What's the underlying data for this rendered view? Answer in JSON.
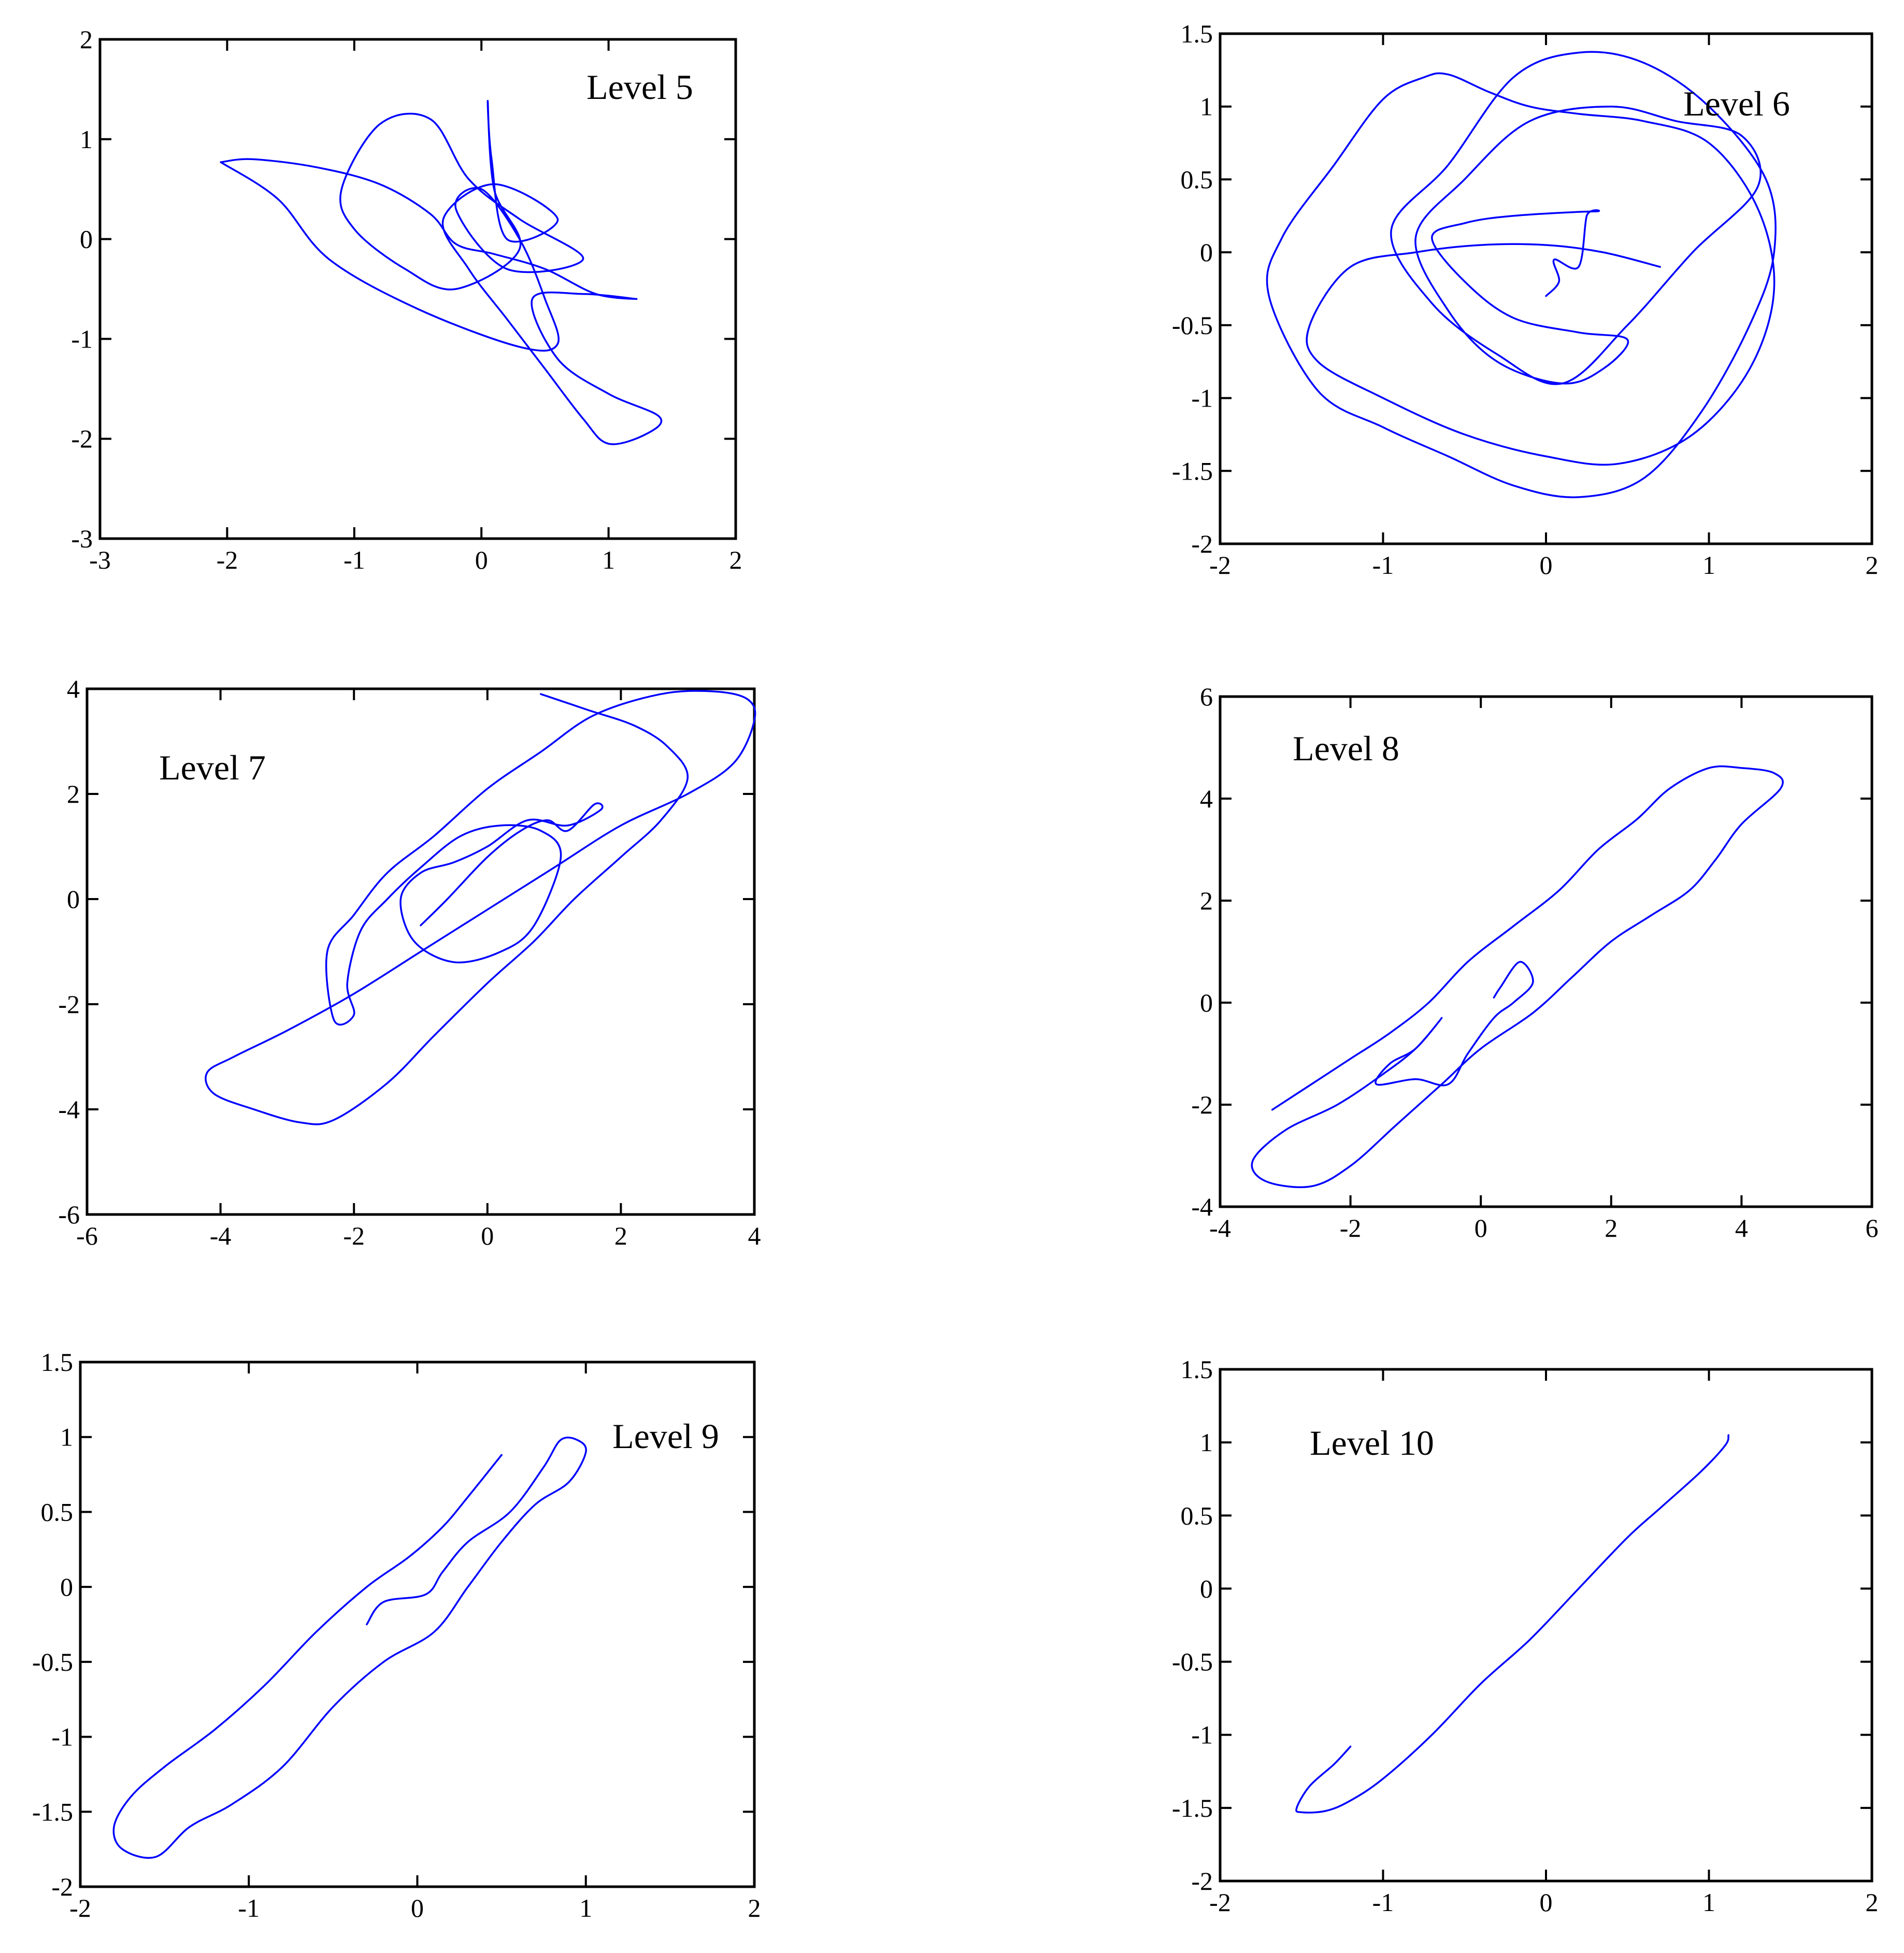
{
  "style": {
    "line_color": "#0000ff",
    "axis_color": "#000000",
    "background": "#ffffff"
  },
  "chart_data": [
    {
      "type": "line",
      "annotation": "Level 5",
      "xlim": [
        -3,
        2
      ],
      "ylim": [
        -3,
        2
      ],
      "xticks": [
        "-3",
        "-2",
        "-1",
        "0",
        "1",
        "2"
      ],
      "yticks": [
        "2",
        "1",
        "0",
        "-1",
        "-2",
        "-3"
      ],
      "grid": false,
      "series": [
        {
          "x": [
            -2.05,
            -1.8,
            -1.3,
            -0.8,
            -0.4,
            -0.2,
            0.1,
            0.5,
            0.9,
            1.22,
            0.8,
            0.4,
            0.6,
            1.0,
            1.4,
            1.3,
            1.0,
            0.8,
            0.5,
            0.2,
            -0.1,
            -0.3,
            0.1,
            0.6,
            0.2,
            0.08,
            0.05,
            0.1,
            0.3,
            -0.2,
            -0.6,
            -1.0,
            -1.1,
            -0.8,
            -0.4,
            -0.1,
            0.3,
            0.8,
            0.2,
            -0.2,
            0.0,
            0.3,
            0.5,
            0.6,
            0.3,
            -0.5,
            -1.2,
            -1.6,
            -2.05
          ],
          "y": [
            0.77,
            0.8,
            0.72,
            0.55,
            0.25,
            -0.05,
            -0.15,
            -0.3,
            -0.55,
            -0.6,
            -0.55,
            -0.6,
            -1.2,
            -1.55,
            -1.78,
            -1.95,
            -2.05,
            -1.8,
            -1.3,
            -0.8,
            -0.3,
            0.2,
            0.55,
            0.2,
            0.0,
            0.8,
            1.38,
            0.5,
            -0.1,
            -0.5,
            -0.3,
            0.1,
            0.5,
            1.15,
            1.2,
            0.6,
            0.2,
            -0.2,
            -0.3,
            0.3,
            0.5,
            0.0,
            -0.6,
            -1.05,
            -1.08,
            -0.7,
            -0.2,
            0.4,
            0.77
          ]
        }
      ]
    },
    {
      "type": "line",
      "annotation": "Level 6",
      "xlim": [
        -2,
        2
      ],
      "ylim": [
        -2,
        1.5
      ],
      "xticks": [
        "-2",
        "-1",
        "0",
        "1",
        "2"
      ],
      "yticks": [
        "1.5",
        "1",
        "0.5",
        "0",
        "-0.5",
        "-1",
        "-1.5",
        "-2"
      ],
      "grid": false,
      "series": [
        {
          "x": [
            0.0,
            0.08,
            0.05,
            0.2,
            0.25,
            0.3,
            -0.2,
            -0.5,
            -0.7,
            -0.5,
            -0.2,
            0.2,
            0.5,
            0.35,
            0.1,
            -0.3,
            -0.6,
            -0.8,
            -0.5,
            -0.1,
            0.4,
            0.8,
            1.2,
            1.3,
            0.9,
            0.5,
            0.1,
            -0.3,
            -0.7,
            -0.95,
            -0.6,
            -0.2,
            0.2,
            0.6,
            1.0,
            1.35,
            1.4,
            1.25,
            0.95,
            0.6,
            0.2,
            -0.2,
            -0.6,
            -1.0,
            -1.4,
            -1.7,
            -1.62,
            -1.3,
            -1.0,
            -0.75,
            -0.6,
            -0.35,
            -0.1,
            0.2,
            0.6,
            1.0,
            1.3,
            1.4,
            1.25,
            0.9,
            0.45,
            0.0,
            -0.5,
            -1.0,
            -1.4,
            -1.45,
            -1.2,
            -0.8,
            -0.4,
            0.0,
            0.35,
            0.7
          ],
          "y": [
            -0.3,
            -0.2,
            -0.05,
            -0.1,
            0.25,
            0.28,
            0.25,
            0.2,
            0.1,
            -0.2,
            -0.45,
            -0.55,
            -0.6,
            -0.8,
            -0.9,
            -0.75,
            -0.4,
            0.1,
            0.5,
            0.9,
            1.0,
            0.9,
            0.8,
            0.45,
            0.0,
            -0.5,
            -0.9,
            -0.7,
            -0.35,
            0.15,
            0.6,
            1.2,
            1.37,
            1.3,
            1.0,
            0.5,
            0.0,
            -0.5,
            -1.1,
            -1.55,
            -1.68,
            -1.6,
            -1.4,
            -1.2,
            -0.95,
            -0.3,
            0.1,
            0.6,
            1.05,
            1.2,
            1.22,
            1.1,
            1.0,
            0.95,
            0.9,
            0.75,
            0.3,
            -0.25,
            -0.8,
            -1.25,
            -1.45,
            -1.4,
            -1.25,
            -1.0,
            -0.75,
            -0.5,
            -0.1,
            0.0,
            0.05,
            0.05,
            0.0,
            -0.1
          ]
        }
      ]
    },
    {
      "type": "line",
      "annotation": "Level 7",
      "xlim": [
        -6,
        4
      ],
      "ylim": [
        -6,
        4
      ],
      "xticks": [
        "-6",
        "-4",
        "-2",
        "0",
        "2",
        "4"
      ],
      "yticks": [
        "4",
        "2",
        "0",
        "-2",
        "-4",
        "-6"
      ],
      "grid": false,
      "series": [
        {
          "x": [
            -1.0,
            -0.6,
            0.0,
            0.5,
            0.9,
            1.2,
            1.6,
            1.7,
            1.2,
            0.6,
            0.0,
            -0.5,
            -1.0,
            -1.3,
            -1.1,
            -0.5,
            0.2,
            0.7,
            1.1,
            0.8,
            0.2,
            -0.4,
            -1.0,
            -1.5,
            -1.9,
            -2.1,
            -2.0,
            -2.3,
            -2.4,
            -2.0,
            -1.5,
            -0.8,
            0.0,
            0.8,
            1.6,
            2.6,
            3.4,
            3.9,
            4.0,
            3.7,
            3.0,
            2.0,
            1.0,
            0.0,
            -1.0,
            -2.0,
            -3.0,
            -3.8,
            -4.2,
            -4.1,
            -3.5,
            -2.8,
            -2.3,
            -1.5,
            -0.8,
            0.0,
            0.7,
            1.3,
            2.0,
            2.6,
            3.0,
            2.7,
            2.2,
            1.5,
            0.8
          ],
          "y": [
            -0.5,
            0.0,
            0.8,
            1.3,
            1.5,
            1.3,
            1.8,
            1.7,
            1.4,
            1.5,
            1.0,
            0.7,
            0.5,
            0.0,
            -0.8,
            -1.2,
            -1.0,
            -0.5,
            0.8,
            1.3,
            1.4,
            1.2,
            0.6,
            0.0,
            -0.6,
            -1.6,
            -2.2,
            -2.3,
            -1.0,
            -0.3,
            0.5,
            1.2,
            2.1,
            2.8,
            3.5,
            3.9,
            3.95,
            3.8,
            3.4,
            2.6,
            2.0,
            1.4,
            0.6,
            -0.2,
            -1.0,
            -1.8,
            -2.5,
            -3.0,
            -3.3,
            -3.7,
            -4.0,
            -4.25,
            -4.2,
            -3.5,
            -2.6,
            -1.6,
            -0.8,
            0.0,
            0.8,
            1.5,
            2.3,
            2.9,
            3.3,
            3.6,
            3.9
          ]
        }
      ]
    },
    {
      "type": "line",
      "annotation": "Level 8",
      "xlim": [
        -4,
        6
      ],
      "ylim": [
        -4,
        6
      ],
      "xticks": [
        "-4",
        "-2",
        "0",
        "2",
        "4",
        "6"
      ],
      "yticks": [
        "6",
        "4",
        "2",
        "0",
        "-2",
        "-4"
      ],
      "grid": false,
      "series": [
        {
          "x": [
            0.2,
            0.3,
            0.6,
            0.8,
            0.5,
            0.2,
            -0.2,
            -0.5,
            -1.0,
            -1.6,
            -1.4,
            -1.0,
            -0.6,
            -1.0,
            -1.5,
            -2.2,
            -3.0,
            -3.5,
            -3.3,
            -2.6,
            -2.0,
            -1.3,
            -0.6,
            0.0,
            0.8,
            1.4,
            2.0,
            2.6,
            3.2,
            3.6,
            4.0,
            4.6,
            4.5,
            4.0,
            3.5,
            2.9,
            2.4,
            1.8,
            1.2,
            0.5,
            -0.2,
            -0.8,
            -1.4,
            -2.0,
            -2.6,
            -3.2
          ],
          "y": [
            0.1,
            0.3,
            0.8,
            0.4,
            0.0,
            -0.3,
            -1.0,
            -1.6,
            -1.5,
            -1.6,
            -1.2,
            -0.9,
            -0.3,
            -0.9,
            -1.4,
            -2.0,
            -2.5,
            -3.1,
            -3.5,
            -3.6,
            -3.2,
            -2.4,
            -1.6,
            -0.9,
            -0.2,
            0.5,
            1.2,
            1.7,
            2.2,
            2.8,
            3.5,
            4.2,
            4.5,
            4.6,
            4.6,
            4.2,
            3.6,
            3.0,
            2.2,
            1.5,
            0.8,
            0.0,
            -0.6,
            -1.1,
            -1.6,
            -2.1
          ]
        }
      ]
    },
    {
      "type": "line",
      "annotation": "Level 9",
      "xlim": [
        -2,
        2
      ],
      "ylim": [
        -2,
        1.5
      ],
      "xticks": [
        "-2",
        "-1",
        "0",
        "1",
        "2"
      ],
      "yticks": [
        "1.5",
        "1",
        "0.5",
        "0",
        "-0.5",
        "-1",
        "-1.5",
        "-2"
      ],
      "grid": false,
      "series": [
        {
          "x": [
            -0.3,
            -0.2,
            0.05,
            0.15,
            0.3,
            0.55,
            0.75,
            0.85,
            0.95,
            1.0,
            0.9,
            0.7,
            0.5,
            0.3,
            0.1,
            -0.2,
            -0.5,
            -0.8,
            -1.1,
            -1.35,
            -1.55,
            -1.75,
            -1.8,
            -1.7,
            -1.5,
            -1.2,
            -0.9,
            -0.6,
            -0.3,
            -0.05,
            0.15,
            0.3,
            0.5
          ],
          "y": [
            -0.25,
            -0.1,
            -0.05,
            0.1,
            0.3,
            0.5,
            0.8,
            0.98,
            0.98,
            0.9,
            0.7,
            0.55,
            0.3,
            0.0,
            -0.3,
            -0.5,
            -0.8,
            -1.2,
            -1.45,
            -1.6,
            -1.8,
            -1.75,
            -1.6,
            -1.4,
            -1.2,
            -0.95,
            -0.65,
            -0.3,
            0.0,
            0.2,
            0.4,
            0.6,
            0.88
          ]
        }
      ]
    },
    {
      "type": "line",
      "annotation": "Level 10",
      "xlim": [
        -2,
        2
      ],
      "ylim": [
        -2,
        1.5
      ],
      "xticks": [
        "-2",
        "-1",
        "0",
        "1",
        "2"
      ],
      "yticks": [
        "1.5",
        "1",
        "0.5",
        "0",
        "-0.5",
        "-1",
        "-1.5",
        "-2"
      ],
      "grid": false,
      "series": [
        {
          "x": [
            -1.2,
            -1.3,
            -1.45,
            -1.53,
            -1.5,
            -1.35,
            -1.2,
            -1.0,
            -0.7,
            -0.4,
            -0.1,
            0.2,
            0.5,
            0.7,
            0.95,
            1.1,
            1.12
          ],
          "y": [
            -1.08,
            -1.2,
            -1.35,
            -1.5,
            -1.53,
            -1.52,
            -1.45,
            -1.3,
            -1.0,
            -0.65,
            -0.35,
            0.0,
            0.35,
            0.55,
            0.8,
            0.98,
            1.05
          ]
        }
      ]
    }
  ]
}
